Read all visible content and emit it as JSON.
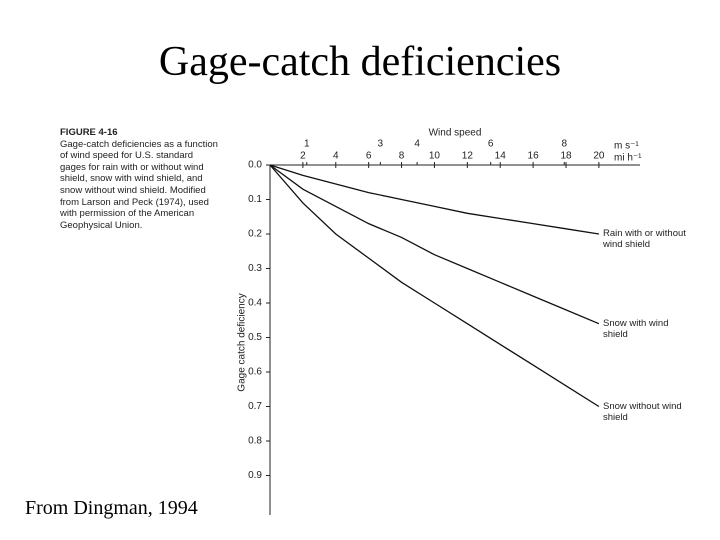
{
  "slide_title": "Gage-catch deficiencies",
  "caption": {
    "label": "FIGURE 4-16",
    "text": "Gage-catch deficiencies as a function of wind speed for U.S. standard gages for rain with or without wind shield, snow with wind shield, and snow without wind shield. Modified from Larson and Peck (1974), used with permission of the American Geophysical Union."
  },
  "source": "From Dingman, 1994",
  "chart_data": {
    "type": "line",
    "x_label": "Wind speed",
    "x_unit": "mi h⁻¹",
    "x2_unit": "m s⁻¹",
    "y_label": "Gage catch deficiency",
    "x": [
      0,
      2,
      4,
      6,
      8,
      10,
      12,
      14,
      16,
      18,
      20
    ],
    "xlim": [
      0,
      22.5
    ],
    "xticks": [
      2,
      4,
      6,
      8,
      10,
      12,
      14,
      16,
      18,
      20
    ],
    "x2lim": [
      0,
      10.06
    ],
    "x2ticks": [
      1,
      3,
      4,
      6,
      8
    ],
    "ylim": [
      0,
      1.0
    ],
    "y_inverted": true,
    "yticks": [
      {
        "value": 0,
        "label": "0.0"
      },
      0.1,
      0.2,
      0.3,
      0.4,
      0.5,
      0.6,
      0.7,
      0.8,
      0.9
    ],
    "series": [
      {
        "name": "Rain with or without wind shield",
        "color": "#111111",
        "values": [
          0,
          0.03,
          0.055,
          0.08,
          0.1,
          0.12,
          0.14,
          0.155,
          0.17,
          0.185,
          0.2
        ]
      },
      {
        "name": "Snow with wind shield",
        "color": "#111111",
        "values": [
          0,
          0.07,
          0.12,
          0.17,
          0.21,
          0.26,
          0.3,
          0.34,
          0.38,
          0.42,
          0.46
        ]
      },
      {
        "name": "Snow without wind shield",
        "color": "#111111",
        "values": [
          0,
          0.11,
          0.2,
          0.27,
          0.34,
          0.4,
          0.46,
          0.52,
          0.58,
          0.64,
          0.7
        ]
      }
    ]
  }
}
